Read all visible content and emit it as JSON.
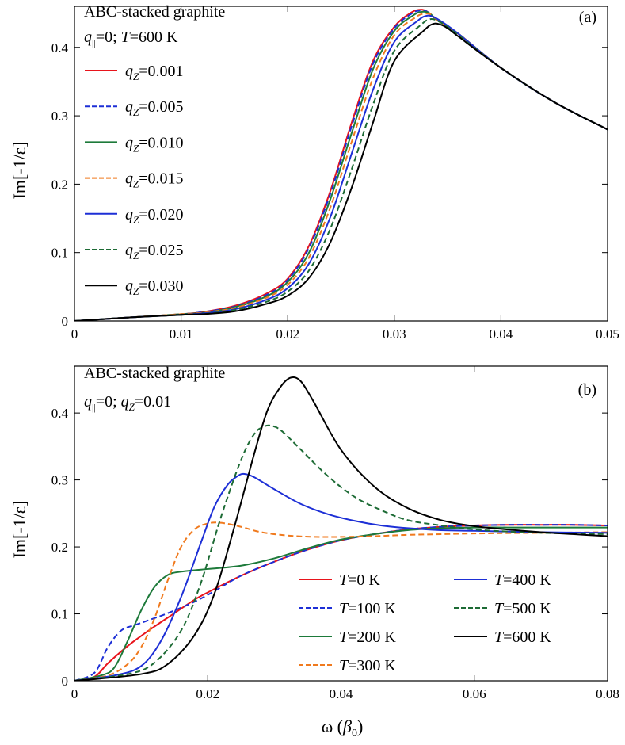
{
  "chart_data": [
    {
      "type": "line",
      "panel_label": "(a)",
      "title": "ABC-stacked graphite",
      "subtitle": {
        "q_sym": "q",
        "q_sub": "||",
        "q_val": "=0; ",
        "T_sym": "T",
        "T_val": "=600 K"
      },
      "xlabel": "",
      "ylabel": "Im[-1/ε]",
      "xlim": [
        0,
        0.05
      ],
      "ylim": [
        0,
        0.46
      ],
      "xticks": [
        0,
        0.01,
        0.02,
        0.03,
        0.04,
        0.05
      ],
      "xtick_labels": [
        "0",
        "0.01",
        "0.02",
        "0.03",
        "0.04",
        "0.05"
      ],
      "yticks": [
        0,
        0.1,
        0.2,
        0.3,
        0.4
      ],
      "ytick_labels": [
        "0",
        "0.1",
        "0.2",
        "0.3",
        "0.4"
      ],
      "legend_position": "top-left",
      "series": [
        {
          "name": "0.001",
          "label_sym": "q",
          "label_sub": "Z",
          "label_val": "=0.001",
          "color": "#e8141c",
          "dash": "solid",
          "x": [
            0,
            0.005,
            0.01,
            0.012,
            0.015,
            0.018,
            0.02,
            0.022,
            0.024,
            0.026,
            0.028,
            0.03,
            0.0315,
            0.0323,
            0.033,
            0.034,
            0.036,
            0.04,
            0.045,
            0.05
          ],
          "values": [
            0,
            0.005,
            0.01,
            0.013,
            0.022,
            0.04,
            0.062,
            0.11,
            0.19,
            0.29,
            0.38,
            0.43,
            0.45,
            0.455,
            0.453,
            0.44,
            0.42,
            0.37,
            0.32,
            0.28
          ]
        },
        {
          "name": "0.005",
          "label_sym": "q",
          "label_sub": "Z",
          "label_val": "=0.005",
          "color": "#1d2fd6",
          "dash": "dashed",
          "x": [
            0,
            0.005,
            0.01,
            0.012,
            0.015,
            0.018,
            0.02,
            0.022,
            0.024,
            0.026,
            0.028,
            0.03,
            0.0316,
            0.0324,
            0.0331,
            0.034,
            0.036,
            0.04,
            0.045,
            0.05
          ],
          "values": [
            0,
            0.005,
            0.01,
            0.013,
            0.021,
            0.038,
            0.06,
            0.107,
            0.186,
            0.285,
            0.376,
            0.428,
            0.449,
            0.454,
            0.452,
            0.44,
            0.42,
            0.37,
            0.32,
            0.28
          ]
        },
        {
          "name": "0.010",
          "label_sym": "q",
          "label_sub": "Z",
          "label_val": "=0.010",
          "color": "#1d7a3a",
          "dash": "solid",
          "x": [
            0,
            0.005,
            0.01,
            0.012,
            0.015,
            0.018,
            0.02,
            0.022,
            0.024,
            0.026,
            0.028,
            0.03,
            0.0318,
            0.0326,
            0.0333,
            0.034,
            0.036,
            0.04,
            0.045,
            0.05
          ],
          "values": [
            0,
            0.005,
            0.01,
            0.012,
            0.02,
            0.036,
            0.057,
            0.1,
            0.178,
            0.275,
            0.368,
            0.424,
            0.447,
            0.452,
            0.45,
            0.44,
            0.42,
            0.37,
            0.32,
            0.28
          ]
        },
        {
          "name": "0.015",
          "label_sym": "q",
          "label_sub": "Z",
          "label_val": "=0.015",
          "color": "#f07a1e",
          "dash": "dashed",
          "x": [
            0,
            0.005,
            0.01,
            0.012,
            0.015,
            0.018,
            0.02,
            0.022,
            0.024,
            0.026,
            0.028,
            0.03,
            0.032,
            0.0328,
            0.0335,
            0.034,
            0.036,
            0.04,
            0.045,
            0.05
          ],
          "values": [
            0,
            0.005,
            0.01,
            0.012,
            0.019,
            0.034,
            0.053,
            0.093,
            0.166,
            0.262,
            0.355,
            0.418,
            0.444,
            0.449,
            0.448,
            0.44,
            0.42,
            0.37,
            0.32,
            0.28
          ]
        },
        {
          "name": "0.020",
          "label_sym": "q",
          "label_sub": "Z",
          "label_val": "=0.020",
          "color": "#1d2fd6",
          "dash": "solid",
          "x": [
            0,
            0.005,
            0.01,
            0.012,
            0.015,
            0.018,
            0.02,
            0.022,
            0.024,
            0.026,
            0.028,
            0.03,
            0.0322,
            0.033,
            0.0336,
            0.0345,
            0.036,
            0.04,
            0.045,
            0.05
          ],
          "values": [
            0,
            0.005,
            0.009,
            0.011,
            0.017,
            0.031,
            0.048,
            0.084,
            0.152,
            0.245,
            0.338,
            0.408,
            0.439,
            0.446,
            0.445,
            0.437,
            0.42,
            0.37,
            0.32,
            0.28
          ]
        },
        {
          "name": "0.025",
          "label_sym": "q",
          "label_sub": "Z",
          "label_val": "=0.025",
          "color": "#1d6b35",
          "dash": "dashed",
          "x": [
            0,
            0.005,
            0.01,
            0.012,
            0.015,
            0.018,
            0.02,
            0.022,
            0.024,
            0.026,
            0.028,
            0.03,
            0.0325,
            0.0333,
            0.0339,
            0.0348,
            0.036,
            0.04,
            0.045,
            0.05
          ],
          "values": [
            0,
            0.005,
            0.009,
            0.01,
            0.016,
            0.028,
            0.043,
            0.074,
            0.135,
            0.222,
            0.316,
            0.395,
            0.433,
            0.441,
            0.44,
            0.432,
            0.418,
            0.37,
            0.32,
            0.28
          ]
        },
        {
          "name": "0.030",
          "label_sym": "q",
          "label_sub": "Z",
          "label_val": "=0.030",
          "color": "#000000",
          "dash": "solid",
          "x": [
            0,
            0.005,
            0.01,
            0.012,
            0.015,
            0.018,
            0.02,
            0.022,
            0.024,
            0.026,
            0.028,
            0.03,
            0.0328,
            0.0336,
            0.0342,
            0.035,
            0.036,
            0.04,
            0.045,
            0.05
          ],
          "values": [
            0,
            0.005,
            0.009,
            0.01,
            0.014,
            0.025,
            0.037,
            0.063,
            0.115,
            0.195,
            0.29,
            0.38,
            0.425,
            0.434,
            0.434,
            0.428,
            0.416,
            0.37,
            0.32,
            0.28
          ]
        }
      ]
    },
    {
      "type": "line",
      "panel_label": "(b)",
      "title": "ABC-stacked graphite",
      "subtitle": {
        "q_sym": "q",
        "q_sub": "||",
        "q_val": "=0; ",
        "qz_sym": "q",
        "qz_sub": "Z",
        "qz_val": "=0.01"
      },
      "xlabel": {
        "omega": "ω (",
        "beta": "β",
        "beta_sub": "0",
        "close": ")"
      },
      "ylabel": "Im[-1/ε]",
      "xlim": [
        0,
        0.08
      ],
      "ylim": [
        0,
        0.47
      ],
      "xticks": [
        0,
        0.02,
        0.04,
        0.06,
        0.08
      ],
      "xtick_labels": [
        "0",
        "0.02",
        "0.04",
        "0.06",
        "0.08"
      ],
      "yticks": [
        0,
        0.1,
        0.2,
        0.3,
        0.4
      ],
      "ytick_labels": [
        "0",
        "0.1",
        "0.2",
        "0.3",
        "0.4"
      ],
      "legend_position": "bottom-right",
      "series": [
        {
          "name": "0 K",
          "label_sym": "T",
          "label_val": "=0 K",
          "color": "#e8141c",
          "dash": "solid",
          "x": [
            0,
            0.003,
            0.005,
            0.008,
            0.01,
            0.012,
            0.015,
            0.018,
            0.02,
            0.025,
            0.03,
            0.035,
            0.04,
            0.045,
            0.05,
            0.055,
            0.06,
            0.065,
            0.07,
            0.075,
            0.08
          ],
          "values": [
            0,
            0.006,
            0.026,
            0.052,
            0.067,
            0.081,
            0.101,
            0.121,
            0.132,
            0.157,
            0.178,
            0.196,
            0.21,
            0.219,
            0.226,
            0.23,
            0.232,
            0.233,
            0.233,
            0.233,
            0.232
          ]
        },
        {
          "name": "100 K",
          "label_sym": "T",
          "label_val": "=100 K",
          "color": "#1d2fd6",
          "dash": "dashed",
          "x": [
            0,
            0.003,
            0.005,
            0.007,
            0.009,
            0.011,
            0.014,
            0.018,
            0.021,
            0.025,
            0.03,
            0.035,
            0.04,
            0.045,
            0.05,
            0.055,
            0.06,
            0.065,
            0.07,
            0.075,
            0.08
          ],
          "values": [
            0,
            0.012,
            0.05,
            0.075,
            0.083,
            0.09,
            0.101,
            0.118,
            0.134,
            0.157,
            0.178,
            0.196,
            0.21,
            0.219,
            0.226,
            0.23,
            0.232,
            0.233,
            0.233,
            0.233,
            0.232
          ]
        },
        {
          "name": "200 K",
          "label_sym": "T",
          "label_val": "=200 K",
          "color": "#1d7a3a",
          "dash": "solid",
          "x": [
            0,
            0.004,
            0.006,
            0.008,
            0.01,
            0.012,
            0.014,
            0.016,
            0.02,
            0.025,
            0.03,
            0.035,
            0.04,
            0.045,
            0.05,
            0.055,
            0.06,
            0.065,
            0.07,
            0.075,
            0.08
          ],
          "values": [
            0,
            0.008,
            0.02,
            0.06,
            0.105,
            0.14,
            0.158,
            0.163,
            0.167,
            0.172,
            0.183,
            0.198,
            0.211,
            0.219,
            0.225,
            0.228,
            0.229,
            0.229,
            0.229,
            0.229,
            0.229
          ]
        },
        {
          "name": "300 K",
          "label_sym": "T",
          "label_val": "=300 K",
          "color": "#f07a1e",
          "dash": "dashed",
          "x": [
            0,
            0.005,
            0.008,
            0.01,
            0.012,
            0.014,
            0.016,
            0.018,
            0.02,
            0.022,
            0.025,
            0.028,
            0.032,
            0.036,
            0.04,
            0.045,
            0.05,
            0.055,
            0.06,
            0.07,
            0.08
          ],
          "values": [
            0,
            0.008,
            0.025,
            0.05,
            0.093,
            0.15,
            0.2,
            0.226,
            0.235,
            0.236,
            0.23,
            0.222,
            0.217,
            0.215,
            0.215,
            0.216,
            0.218,
            0.219,
            0.22,
            0.221,
            0.222
          ]
        },
        {
          "name": "400 K",
          "label_sym": "T",
          "label_val": "=400 K",
          "color": "#1d2fd6",
          "dash": "solid",
          "x": [
            0,
            0.006,
            0.01,
            0.013,
            0.016,
            0.019,
            0.021,
            0.023,
            0.0245,
            0.0255,
            0.027,
            0.03,
            0.034,
            0.038,
            0.042,
            0.046,
            0.05,
            0.055,
            0.06,
            0.07,
            0.08
          ],
          "values": [
            0,
            0.008,
            0.022,
            0.06,
            0.125,
            0.207,
            0.26,
            0.293,
            0.306,
            0.309,
            0.304,
            0.286,
            0.264,
            0.249,
            0.239,
            0.232,
            0.228,
            0.225,
            0.224,
            0.222,
            0.221
          ]
        },
        {
          "name": "500 K",
          "label_sym": "T",
          "label_val": "=500 K",
          "color": "#1d6b35",
          "dash": "dashed",
          "x": [
            0,
            0.008,
            0.012,
            0.016,
            0.019,
            0.022,
            0.025,
            0.027,
            0.0285,
            0.0295,
            0.031,
            0.034,
            0.038,
            0.042,
            0.046,
            0.05,
            0.055,
            0.06,
            0.065,
            0.07,
            0.08
          ],
          "values": [
            0,
            0.01,
            0.027,
            0.075,
            0.147,
            0.245,
            0.33,
            0.369,
            0.38,
            0.381,
            0.374,
            0.345,
            0.306,
            0.275,
            0.255,
            0.24,
            0.232,
            0.226,
            0.223,
            0.221,
            0.219
          ]
        },
        {
          "name": "600 K",
          "label_sym": "T",
          "label_val": "=600 K",
          "color": "#000000",
          "dash": "solid",
          "x": [
            0,
            0.01,
            0.014,
            0.018,
            0.021,
            0.024,
            0.027,
            0.029,
            0.031,
            0.0325,
            0.034,
            0.036,
            0.04,
            0.045,
            0.05,
            0.055,
            0.06,
            0.065,
            0.07,
            0.075,
            0.08
          ],
          "values": [
            0,
            0.01,
            0.025,
            0.068,
            0.13,
            0.23,
            0.34,
            0.405,
            0.44,
            0.453,
            0.447,
            0.415,
            0.345,
            0.29,
            0.258,
            0.24,
            0.231,
            0.226,
            0.222,
            0.219,
            0.216
          ]
        }
      ]
    }
  ]
}
